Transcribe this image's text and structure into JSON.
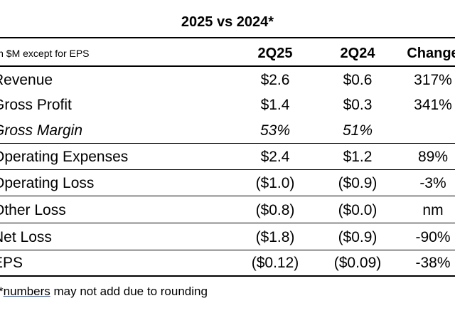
{
  "title": "2025 vs 2024*",
  "header": {
    "label": "in $M except for EPS",
    "cols": [
      "2Q25",
      "2Q24",
      "Change"
    ]
  },
  "rows": [
    {
      "label": "Revenue",
      "v1": "$2.6",
      "v2": "$0.6",
      "v3": "317%"
    },
    {
      "label": "Gross Profit",
      "v1": "$1.4",
      "v2": "$0.3",
      "v3": "341%"
    },
    {
      "label": "Gross Margin",
      "v1": "53%",
      "v2": "51%",
      "v3": ""
    },
    {
      "label": "Operating Expenses",
      "v1": "$2.4",
      "v2": "$1.2",
      "v3": "89%"
    },
    {
      "label": "Operating Loss",
      "v1": "($1.0)",
      "v2": "($0.9)",
      "v3": "-3%"
    },
    {
      "label": "Other Loss",
      "v1": "($0.8)",
      "v2": "($0.0)",
      "v3": "nm"
    },
    {
      "label": "Net Loss",
      "v1": "($1.8)",
      "v2": "($0.9)",
      "v3": "-90%"
    },
    {
      "label": "EPS",
      "v1": "($0.12)",
      "v2": "($0.09)",
      "v3": "-38%"
    }
  ],
  "footnote": {
    "prefix": "*",
    "link_word": "numbers",
    "rest": " may not add due to rounding"
  }
}
